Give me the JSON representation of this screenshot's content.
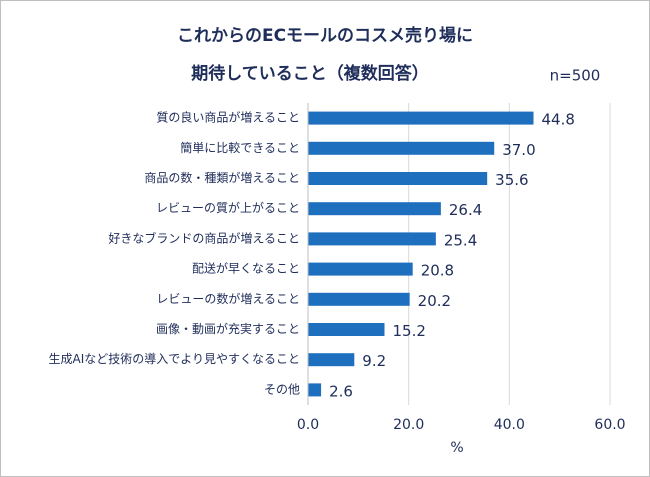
{
  "chart_data": {
    "type": "bar",
    "orientation": "horizontal",
    "title": [
      "これからのECモールのコスメ売り場に",
      "期待していること（複数回答）"
    ],
    "annotation": "n=500",
    "x_label": "%",
    "categories": [
      "質の良い商品が増えること",
      "簡単に比較できること",
      "商品の数・種類が増えること",
      "レビューの質が上がること",
      "好きなブランドの商品が増えること",
      "配送が早くなること",
      "レビューの数が増えること",
      "画像・動画が充実すること",
      "生成AIなど技術の導入でより見やすくなること",
      "その他"
    ],
    "values": [
      44.8,
      37.0,
      35.6,
      26.4,
      25.4,
      20.8,
      20.2,
      15.2,
      9.2,
      2.6
    ],
    "value_labels": [
      "44.8",
      "37.0",
      "35.6",
      "26.4",
      "25.4",
      "20.8",
      "20.2",
      "15.2",
      "9.2",
      "2.6"
    ],
    "color": "#1f6fbf",
    "xlim": [
      0,
      60
    ],
    "xticks": [
      {
        "value": 0,
        "label": "0.0"
      },
      {
        "value": 20,
        "label": "20.0"
      },
      {
        "value": 40,
        "label": "40.0"
      },
      {
        "value": 60,
        "label": "60.0"
      }
    ],
    "grid": true
  }
}
